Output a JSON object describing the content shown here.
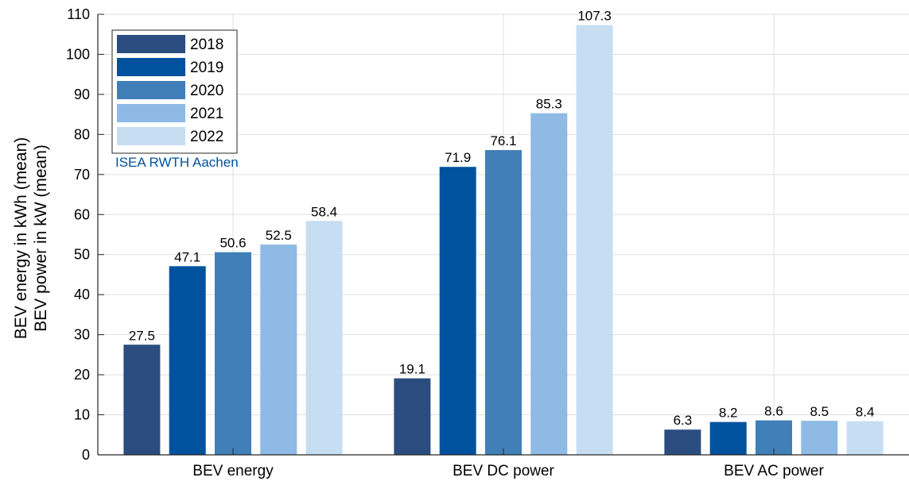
{
  "chart_data": {
    "type": "bar",
    "categories": [
      "BEV energy",
      "BEV DC power",
      "BEV AC power"
    ],
    "series": [
      {
        "name": "2018",
        "color": "#2b4c7e",
        "values": [
          27.5,
          19.1,
          6.3
        ]
      },
      {
        "name": "2019",
        "color": "#00519e",
        "values": [
          47.1,
          71.9,
          8.2
        ]
      },
      {
        "name": "2020",
        "color": "#407fb7",
        "values": [
          50.6,
          76.1,
          8.6
        ]
      },
      {
        "name": "2021",
        "color": "#8ebae5",
        "values": [
          52.5,
          85.3,
          8.5
        ]
      },
      {
        "name": "2022",
        "color": "#c7ddf2",
        "values": [
          58.4,
          107.3,
          8.4
        ]
      }
    ],
    "ylabel_lines": [
      "BEV energy in kWh (mean)",
      "BEV power in kW (mean)"
    ],
    "xlabel": "",
    "title": "",
    "ylim": [
      0,
      110
    ],
    "yticks": [
      0,
      10,
      20,
      30,
      40,
      50,
      60,
      70,
      80,
      90,
      100,
      110
    ],
    "grid": true,
    "legend_position": "top-left",
    "watermark": {
      "text": "ISEA RWTH Aachen",
      "color": "#00519e"
    }
  }
}
